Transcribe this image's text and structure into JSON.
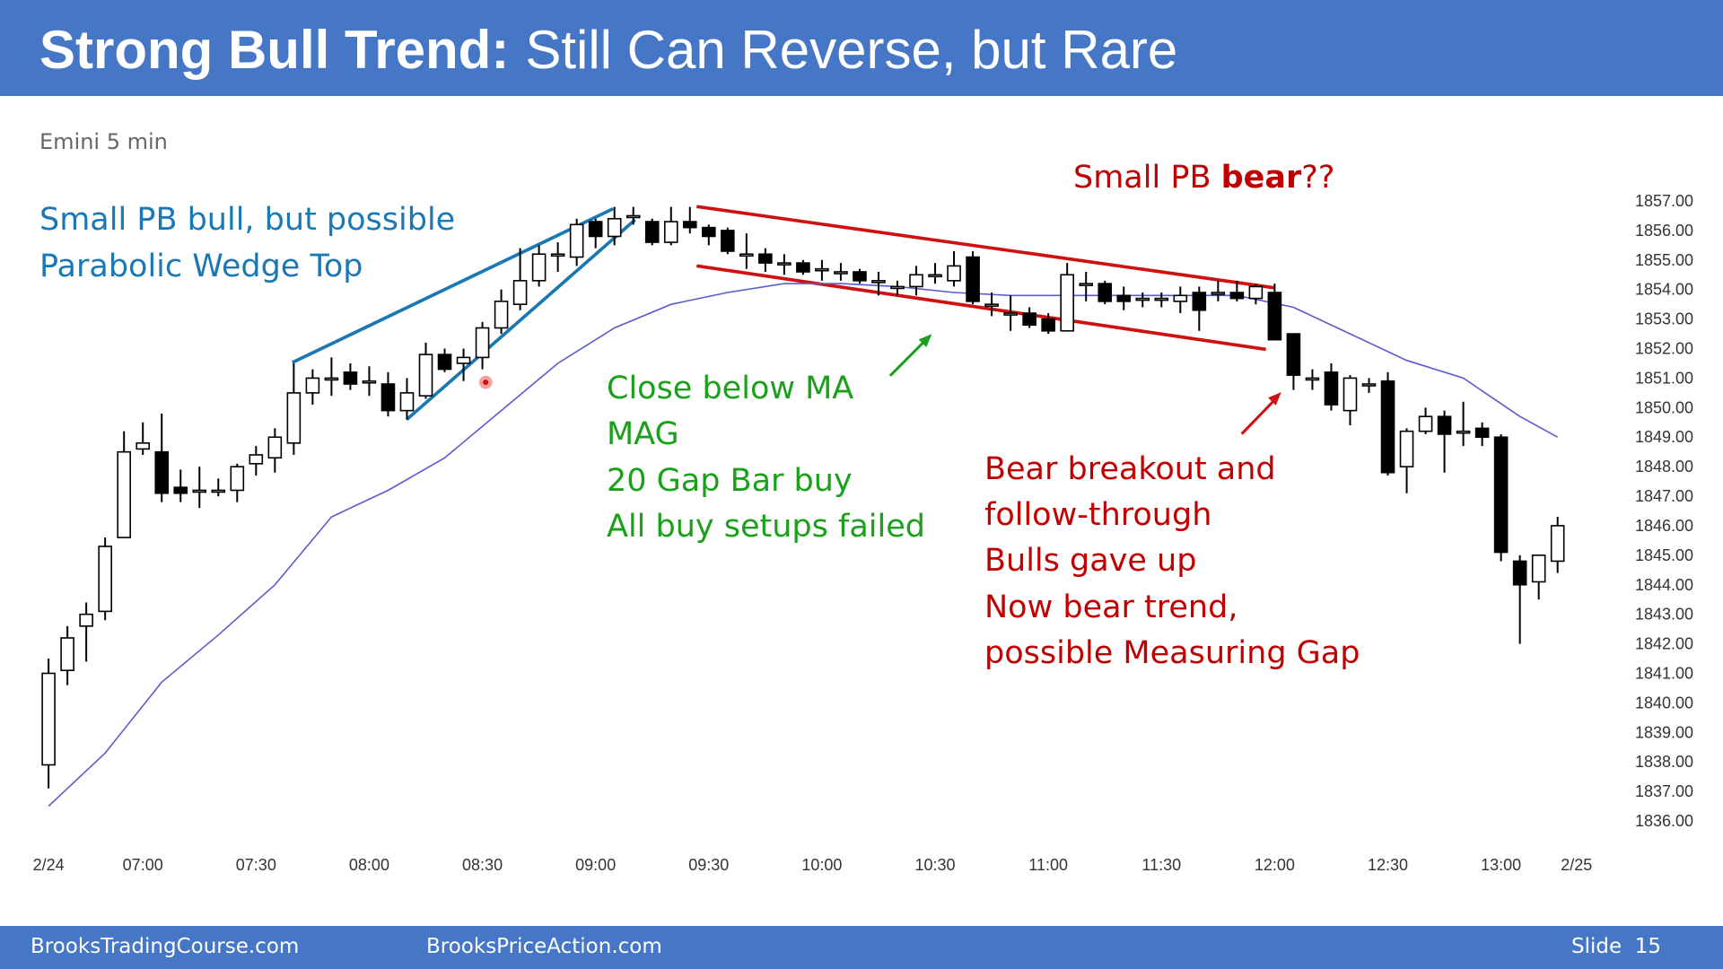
{
  "header": {
    "title_bold": "Strong Bull Trend:",
    "title_rest": "Still Can Reverse, but Rare"
  },
  "subtitle": "Emini 5 min",
  "chart_data": {
    "type": "candlestick",
    "categories": [
      "2/24",
      null,
      null,
      null,
      null,
      "07:00",
      null,
      null,
      null,
      null,
      null,
      "07:30",
      null,
      null,
      null,
      null,
      null,
      "08:00",
      null,
      null,
      null,
      null,
      null,
      "08:30",
      null,
      null,
      null,
      null,
      null,
      "09:00",
      null,
      null,
      null,
      null,
      null,
      "09:30",
      null,
      null,
      null,
      null,
      null,
      "10:00",
      null,
      null,
      null,
      null,
      null,
      "10:30",
      null,
      null,
      null,
      null,
      null,
      "11:00",
      null,
      null,
      null,
      null,
      null,
      "11:30",
      null,
      null,
      null,
      null,
      null,
      "12:00",
      null,
      null,
      null,
      null,
      null,
      "12:30",
      null,
      null,
      null,
      null,
      null,
      "13:00",
      null,
      null,
      null,
      "2/25"
    ],
    "open": [
      1837.9,
      1841.1,
      1842.6,
      1843.1,
      1845.6,
      1848.6,
      1848.5,
      1847.3,
      1847.2,
      1847.2,
      1847.2,
      1848.1,
      1848.3,
      1848.8,
      1850.5,
      1851.0,
      1851.2,
      1850.9,
      1850.8,
      1849.9,
      1850.4,
      1851.8,
      1851.5,
      1851.7,
      1852.7,
      1853.5,
      1854.3,
      1855.2,
      1855.1,
      1856.3,
      1855.8,
      1856.5,
      1856.3,
      1855.6,
      1856.3,
      1856.1,
      1856.0,
      1855.2,
      1855.2,
      1854.9,
      1854.9,
      1854.7,
      1854.6,
      1854.6,
      1854.3,
      1854.1,
      1854.1,
      1854.5,
      1854.3,
      1855.1,
      1853.5,
      1853.2,
      1853.2,
      1853.0,
      1852.6,
      1854.2,
      1854.2,
      1853.8,
      1853.7,
      1853.7,
      1853.6,
      1853.9,
      1853.9,
      1853.9,
      1853.7,
      1853.9,
      1852.5,
      1851.0,
      1851.2,
      1849.9,
      1850.8,
      1850.9,
      1848.0,
      1849.2,
      1849.7,
      1849.2,
      1849.3,
      1849.0,
      1844.8,
      1844.1,
      1844.8,
      null
    ],
    "high": [
      1841.5,
      1842.6,
      1843.4,
      1845.6,
      1849.2,
      1849.5,
      1849.8,
      1847.9,
      1848.0,
      1847.6,
      1848.1,
      1848.7,
      1849.3,
      1851.5,
      1851.3,
      1851.7,
      1851.5,
      1851.4,
      1851.2,
      1851.0,
      1852.2,
      1852.0,
      1852.0,
      1852.9,
      1854.0,
      1855.4,
      1855.5,
      1855.6,
      1856.4,
      1856.4,
      1856.8,
      1856.8,
      1856.4,
      1856.8,
      1856.8,
      1856.2,
      1856.1,
      1855.9,
      1855.4,
      1855.2,
      1855.0,
      1855.0,
      1854.9,
      1854.7,
      1854.6,
      1854.3,
      1854.8,
      1854.9,
      1855.3,
      1855.3,
      1853.9,
      1853.8,
      1853.4,
      1853.2,
      1854.9,
      1854.6,
      1854.3,
      1854.1,
      1853.9,
      1853.9,
      1854.1,
      1854.1,
      1854.3,
      1854.3,
      1854.2,
      1854.2,
      1852.5,
      1851.3,
      1851.5,
      1851.1,
      1851.0,
      1851.2,
      1849.3,
      1850.0,
      1849.9,
      1850.2,
      1849.5,
      1849.1,
      1845.0,
      1845.0,
      1846.3,
      null
    ],
    "low": [
      1837.1,
      1840.6,
      1841.4,
      1842.8,
      1845.6,
      1848.4,
      1846.8,
      1846.8,
      1846.6,
      1847.0,
      1846.8,
      1847.7,
      1847.8,
      1848.4,
      1850.1,
      1850.4,
      1850.6,
      1850.4,
      1849.7,
      1849.6,
      1850.3,
      1851.2,
      1850.9,
      1851.3,
      1852.5,
      1853.3,
      1854.1,
      1854.6,
      1854.8,
      1855.4,
      1855.5,
      1856.2,
      1855.5,
      1855.5,
      1855.9,
      1855.5,
      1855.2,
      1854.7,
      1854.6,
      1854.5,
      1854.5,
      1854.3,
      1854.3,
      1854.2,
      1853.8,
      1853.8,
      1853.8,
      1854.2,
      1854.1,
      1853.5,
      1853.1,
      1852.6,
      1852.7,
      1852.5,
      1852.6,
      1853.6,
      1853.5,
      1853.3,
      1853.4,
      1853.4,
      1853.2,
      1852.6,
      1853.6,
      1853.6,
      1853.5,
      1852.3,
      1850.6,
      1850.6,
      1849.9,
      1849.4,
      1850.5,
      1847.7,
      1847.1,
      1849.1,
      1847.8,
      1848.7,
      1848.7,
      1844.8,
      1842.0,
      1843.5,
      1844.4,
      null
    ],
    "close": [
      1841.0,
      1842.2,
      1843.0,
      1845.3,
      1848.5,
      1848.8,
      1847.1,
      1847.1,
      1847.2,
      1847.2,
      1848.0,
      1848.4,
      1849.0,
      1850.5,
      1851.0,
      1851.0,
      1850.8,
      1850.9,
      1849.9,
      1850.5,
      1851.8,
      1851.3,
      1851.7,
      1852.7,
      1853.6,
      1854.3,
      1855.2,
      1855.2,
      1856.2,
      1855.8,
      1856.4,
      1856.5,
      1855.6,
      1856.3,
      1856.1,
      1855.8,
      1855.3,
      1855.2,
      1854.9,
      1854.9,
      1854.6,
      1854.7,
      1854.6,
      1854.3,
      1854.3,
      1854.1,
      1854.5,
      1854.5,
      1854.8,
      1853.6,
      1853.5,
      1853.2,
      1852.8,
      1852.6,
      1854.5,
      1854.2,
      1853.6,
      1853.6,
      1853.7,
      1853.7,
      1853.8,
      1853.3,
      1853.9,
      1853.7,
      1854.1,
      1852.3,
      1851.1,
      1851.0,
      1850.1,
      1851.0,
      1850.8,
      1847.8,
      1849.2,
      1849.7,
      1849.1,
      1849.2,
      1849.0,
      1845.1,
      1844.0,
      1845.0,
      1846.0,
      null
    ],
    "up_color": "#ffffff",
    "down_color": "#000000",
    "moving_average": {
      "color": "#5b5bd0",
      "x": [
        0,
        3,
        6,
        9,
        12,
        15,
        18,
        21,
        24,
        27,
        30,
        33,
        36,
        39,
        42,
        45,
        48,
        51,
        54,
        57,
        60,
        63,
        66,
        69,
        72,
        75,
        78,
        80
      ],
      "values": [
        1836.5,
        1838.3,
        1840.7,
        1842.3,
        1844.0,
        1846.3,
        1847.2,
        1848.3,
        1849.9,
        1851.5,
        1852.7,
        1853.5,
        1853.9,
        1854.2,
        1854.2,
        1854.1,
        1853.9,
        1853.8,
        1853.8,
        1853.8,
        1853.8,
        1853.8,
        1853.4,
        1852.5,
        1851.6,
        1851.0,
        1849.7,
        1849.0
      ]
    },
    "ylim": [
      1836,
      1857
    ],
    "yticks": [
      {
        "value": 1836,
        "label": "1836.00"
      },
      {
        "value": 1837,
        "label": "1837.00"
      },
      {
        "value": 1838,
        "label": "1838.00"
      },
      {
        "value": 1839,
        "label": "1839.00"
      },
      {
        "value": 1840,
        "label": "1840.00"
      },
      {
        "value": 1841,
        "label": "1841.00"
      },
      {
        "value": 1842,
        "label": "1842.00"
      },
      {
        "value": 1843,
        "label": "1843.00"
      },
      {
        "value": 1844,
        "label": "1844.00"
      },
      {
        "value": 1845,
        "label": "1845.00"
      },
      {
        "value": 1846,
        "label": "1846.00"
      },
      {
        "value": 1847,
        "label": "1847.00"
      },
      {
        "value": 1848,
        "label": "1848.00"
      },
      {
        "value": 1849,
        "label": "1849.00"
      },
      {
        "value": 1850,
        "label": "1850.00"
      },
      {
        "value": 1851,
        "label": "1851.00"
      },
      {
        "value": 1852,
        "label": "1852.00"
      },
      {
        "value": 1853,
        "label": "1853.00"
      },
      {
        "value": 1854,
        "label": "1854.00"
      },
      {
        "value": 1855,
        "label": "1855.00"
      },
      {
        "value": 1856,
        "label": "1856.00"
      },
      {
        "value": 1857,
        "label": "1857.00"
      }
    ],
    "grid": false
  },
  "annotations": {
    "wedge": [
      "Small PB bull, but possible",
      "Parabolic Wedge Top"
    ],
    "setups": [
      "Close below MA",
      "MAG",
      "20 Gap Bar buy",
      "All buy setups failed"
    ],
    "bear_pb": [
      "Small PB ",
      "bear",
      "??"
    ],
    "breakout": [
      "Bear breakout and",
      "follow-through",
      "Bulls gave up",
      "Now bear trend,",
      "possible Measuring Gap"
    ]
  },
  "footer": {
    "left": "BrooksTradingCourse.com",
    "center": "BrooksPriceAction.com",
    "slide": "Slide  15"
  }
}
